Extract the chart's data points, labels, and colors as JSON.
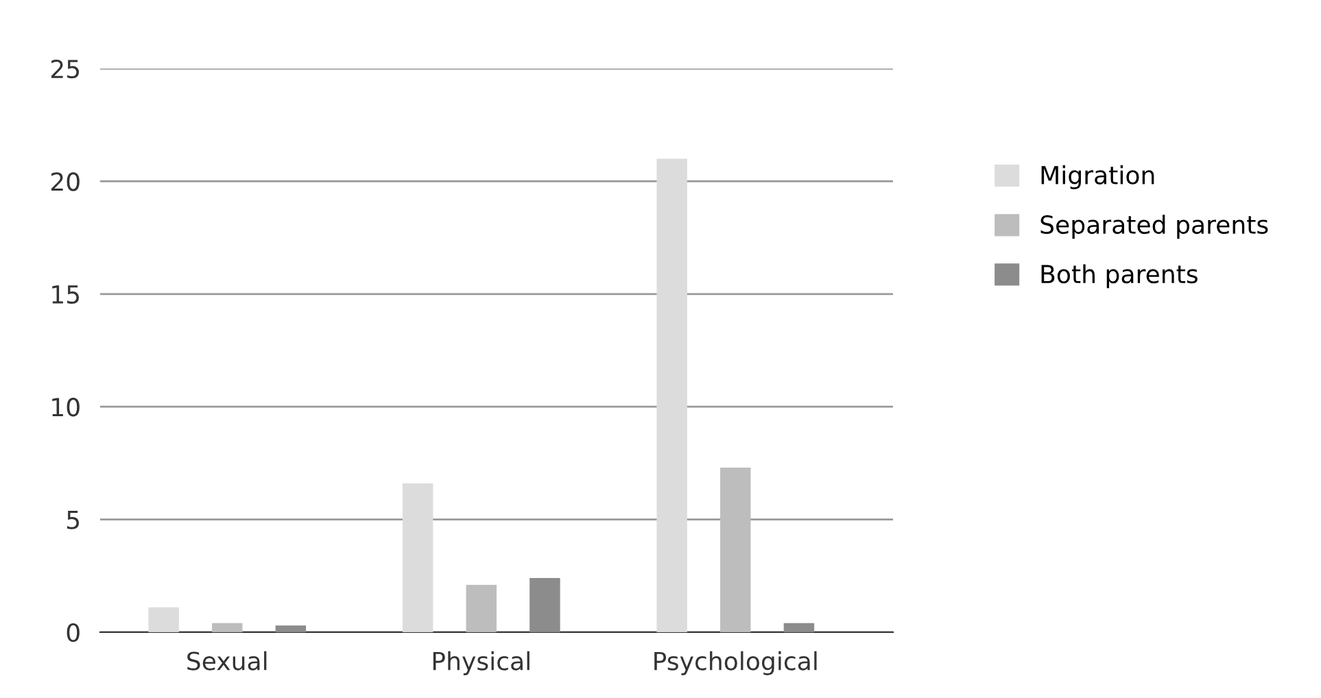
{
  "chart_data": {
    "type": "bar",
    "categories": [
      "Sexual",
      "Physical",
      "Psychological"
    ],
    "series": [
      {
        "name": "Migration",
        "color": "#dcdcdc",
        "values": [
          1.1,
          6.6,
          21.0
        ]
      },
      {
        "name": "Separated parents",
        "color": "#bdbdbd",
        "values": [
          0.4,
          2.1,
          7.3
        ]
      },
      {
        "name": "Both parents",
        "color": "#8c8c8c",
        "values": [
          0.3,
          2.4,
          0.4
        ]
      }
    ],
    "ylim": [
      0,
      25
    ],
    "yticks": [
      0,
      5,
      10,
      15,
      20,
      25
    ],
    "grid": "y",
    "legend": "right"
  }
}
